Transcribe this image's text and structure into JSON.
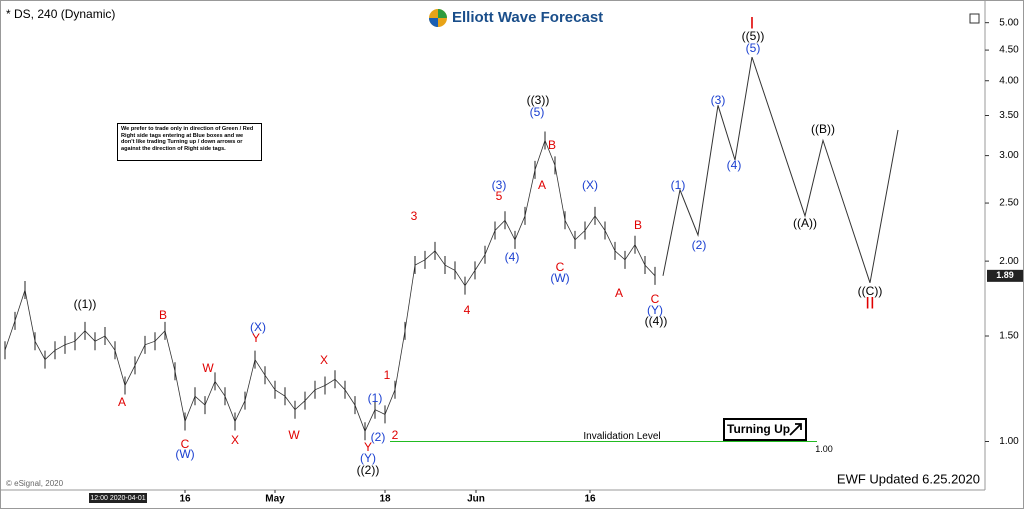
{
  "chart_data": {
    "type": "line",
    "title": "* DS, 240 (Dynamic)",
    "brand": "Elliott Wave Forecast",
    "note": "We prefer to trade only in direction of Green / Red Right side tags entering at Blue boxes and we don't like trading Turning up / down arrows or against the direction of Right side tags.",
    "cursor_label": "12:00 2020-04-01",
    "copyright": "© eSignal, 2020",
    "updated": "EWF Updated 6.25.2020",
    "signal": "Turning Up",
    "log_scale": true,
    "price": {
      "color": "#333333",
      "x": [
        0.5,
        1.5,
        2.5,
        3.5,
        4.5,
        5.5,
        6.5,
        7.5,
        8.5,
        9.5,
        10.5,
        11.5,
        12.5,
        13.5,
        14.5,
        15.5,
        16.5,
        17.5,
        18.5,
        19.5,
        20.5,
        21.5,
        22.5,
        23.5,
        24.5,
        25.5,
        26.5,
        27.5,
        28.5,
        29.5,
        30.5,
        31.5,
        32.5,
        33.5,
        34.5,
        35.5,
        36.5,
        37.5,
        38.5,
        39.5,
        40.5,
        41.5,
        42.5,
        43.5,
        44.5,
        45.5,
        46.5,
        47.5,
        48.5,
        49.5,
        50.5,
        51.5,
        52.5,
        53.5,
        54.5,
        55.5,
        56.5,
        57.5,
        58.5,
        59.5,
        60.5,
        61.5,
        62.5,
        63.5,
        64.5,
        65.5
      ],
      "values": [
        1.42,
        1.59,
        1.79,
        1.47,
        1.37,
        1.42,
        1.45,
        1.47,
        1.53,
        1.47,
        1.5,
        1.42,
        1.24,
        1.34,
        1.45,
        1.47,
        1.53,
        1.31,
        1.08,
        1.19,
        1.15,
        1.26,
        1.19,
        1.08,
        1.17,
        1.37,
        1.29,
        1.22,
        1.19,
        1.13,
        1.17,
        1.22,
        1.24,
        1.27,
        1.22,
        1.15,
        1.04,
        1.13,
        1.11,
        1.22,
        1.53,
        1.97,
        2.01,
        2.08,
        1.97,
        1.93,
        1.82,
        1.93,
        2.05,
        2.25,
        2.34,
        2.17,
        2.38,
        2.84,
        3.18,
        2.89,
        2.34,
        2.17,
        2.25,
        2.38,
        2.25,
        2.08,
        2.01,
        2.13,
        1.97,
        1.89
      ]
    },
    "projection": {
      "color": "#333333",
      "x": [
        66.3,
        68,
        69.8,
        71.8,
        73.5,
        75.2,
        80.5,
        82.3,
        87,
        89.8
      ],
      "values": [
        1.89,
        2.63,
        2.21,
        3.64,
        2.95,
        4.38,
        2.38,
        3.18,
        1.84,
        3.31
      ]
    },
    "last_price": 1.89,
    "invalidation": {
      "text": "Invalidation Level",
      "value": 1,
      "value_label": "1.00",
      "color": "#22bb22"
    },
    "xlim": [
      0,
      98.5
    ],
    "ylim": [
      0.83,
      5.29
    ],
    "xticks": [
      {
        "value": 18.5,
        "label": "16"
      },
      {
        "value": 27.5,
        "label": "May"
      },
      {
        "value": 38.5,
        "label": "18"
      },
      {
        "value": 47.6,
        "label": "Jun"
      },
      {
        "value": 59,
        "label": "16"
      }
    ],
    "yticks": [
      {
        "value": 1,
        "label": "1.00"
      },
      {
        "value": 1.5,
        "label": "1.50"
      },
      {
        "value": 2,
        "label": "2.00"
      },
      {
        "value": 2.5,
        "label": "2.50"
      },
      {
        "value": 3,
        "label": "3.00"
      },
      {
        "value": 3.5,
        "label": "3.50"
      },
      {
        "value": 4,
        "label": "4.00"
      },
      {
        "value": 4.5,
        "label": "4.50"
      },
      {
        "value": 5,
        "label": "5.00"
      }
    ],
    "annotations": [
      {
        "text": "((1))",
        "color": "#000000"
      },
      {
        "text": "B",
        "color": "#e00000"
      },
      {
        "text": "A",
        "color": "#e00000"
      },
      {
        "text": "C",
        "color": "#e00000"
      },
      {
        "text": "(W)",
        "color": "#1a3fd0"
      },
      {
        "text": "W",
        "color": "#e00000"
      },
      {
        "text": "X",
        "color": "#e00000"
      },
      {
        "text": "(X)",
        "color": "#1a3fd0"
      },
      {
        "text": "Y",
        "color": "#e00000"
      },
      {
        "text": "W",
        "color": "#e00000"
      },
      {
        "text": "X",
        "color": "#e00000"
      },
      {
        "text": "1",
        "color": "#e00000"
      },
      {
        "text": "(1)",
        "color": "#1a3fd0"
      },
      {
        "text": "2",
        "color": "#e00000"
      },
      {
        "text": "(2)",
        "color": "#1a3fd0"
      },
      {
        "text": "Y",
        "color": "#e00000"
      },
      {
        "text": "(Y)",
        "color": "#1a3fd0"
      },
      {
        "text": "((2))",
        "color": "#000000"
      },
      {
        "text": "3",
        "color": "#e00000"
      },
      {
        "text": "4",
        "color": "#e00000"
      },
      {
        "text": "(3)",
        "color": "#1a3fd0"
      },
      {
        "text": "5",
        "color": "#e00000"
      },
      {
        "text": "(4)",
        "color": "#1a3fd0"
      },
      {
        "text": "((3))",
        "color": "#000000"
      },
      {
        "text": "(5)",
        "color": "#1a3fd0"
      },
      {
        "text": "B",
        "color": "#e00000"
      },
      {
        "text": "A",
        "color": "#e00000"
      },
      {
        "text": "(X)",
        "color": "#1a3fd0"
      },
      {
        "text": "C",
        "color": "#e00000"
      },
      {
        "text": "(W)",
        "color": "#1a3fd0"
      },
      {
        "text": "B",
        "color": "#e00000"
      },
      {
        "text": "A",
        "color": "#e00000"
      },
      {
        "text": "C",
        "color": "#e00000"
      },
      {
        "text": "(Y)",
        "color": "#1a3fd0"
      },
      {
        "text": "((4))",
        "color": "#000000"
      },
      {
        "text": "(1)",
        "color": "#1a3fd0"
      },
      {
        "text": "(2)",
        "color": "#1a3fd0"
      },
      {
        "text": "(3)",
        "color": "#1a3fd0"
      },
      {
        "text": "(4)",
        "color": "#1a3fd0"
      },
      {
        "text": "I",
        "color": "#e00000"
      },
      {
        "text": "((5))",
        "color": "#000000"
      },
      {
        "text": "(5)",
        "color": "#1a3fd0"
      },
      {
        "text": "((A))",
        "color": "#000000"
      },
      {
        "text": "((B))",
        "color": "#000000"
      },
      {
        "text": "((C))",
        "color": "#000000"
      },
      {
        "text": "II",
        "color": "#e00000"
      }
    ]
  }
}
